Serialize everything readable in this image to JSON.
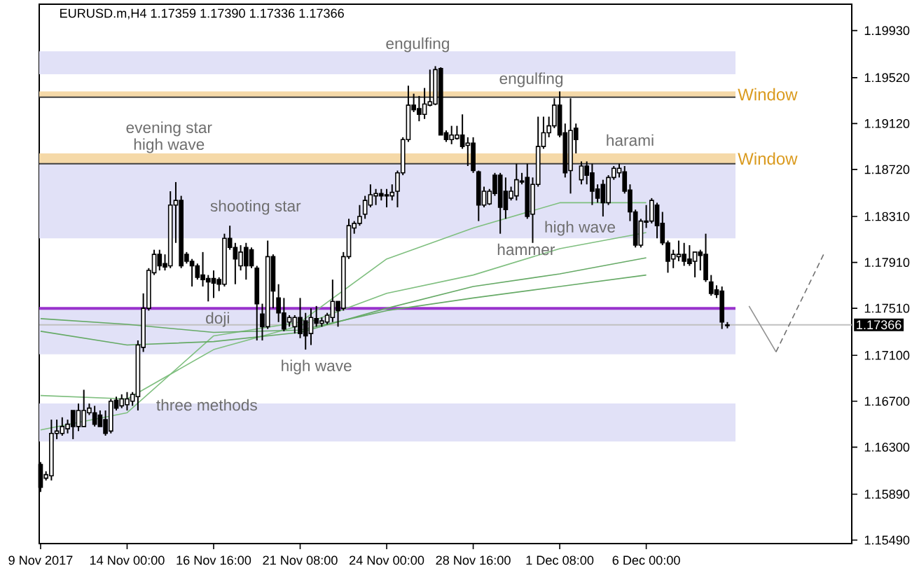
{
  "chart_data": {
    "type": "candlestick",
    "title": "EURUSD.m,H4 1.17359 1.17390 1.17336 1.17366",
    "categories": [
      "9 Nov 2017",
      null,
      null,
      null,
      null,
      null,
      null,
      null,
      null,
      null,
      null,
      null,
      null,
      null,
      null,
      null,
      "14 Nov 00:00",
      null,
      null,
      null,
      null,
      null,
      null,
      null,
      null,
      null,
      null,
      null,
      null,
      null,
      null,
      null,
      "16 Nov 16:00",
      null,
      null,
      null,
      null,
      null,
      null,
      null,
      null,
      null,
      null,
      null,
      null,
      null,
      null,
      null,
      "21 Nov 08:00",
      null,
      null,
      null,
      null,
      null,
      null,
      null,
      null,
      null,
      null,
      null,
      null,
      null,
      null,
      null,
      "24 Nov 00:00",
      null,
      null,
      null,
      null,
      null,
      null,
      null,
      null,
      null,
      null,
      null,
      null,
      null,
      null,
      null,
      "28 Nov 16:00",
      null,
      null,
      null,
      null,
      null,
      null,
      null,
      null,
      null,
      null,
      null,
      null,
      null,
      null,
      null,
      "1 Dec 08:00",
      null,
      null,
      null,
      null,
      null,
      null,
      null,
      null,
      null,
      null,
      null,
      null,
      null,
      null,
      null,
      "6 Dec 00:00",
      null,
      null,
      null,
      null,
      null,
      null,
      null,
      null,
      null,
      null,
      null,
      null,
      null,
      null,
      null,
      null,
      null,
      null,
      null,
      null,
      null,
      null,
      null,
      null,
      null,
      null,
      null,
      null,
      null,
      null,
      null,
      null,
      null,
      null,
      null,
      null,
      null,
      null
    ],
    "ohlc": [
      [
        1.1615,
        1.1617,
        1.1591,
        1.1595
      ],
      [
        1.1603,
        1.1609,
        1.1601,
        1.1606
      ],
      [
        1.1605,
        1.1654,
        1.1601,
        1.1642
      ],
      [
        1.1642,
        1.1654,
        1.1637,
        1.1644
      ],
      [
        1.1642,
        1.1656,
        1.164,
        1.1648
      ],
      [
        1.1646,
        1.1654,
        1.1642,
        1.165
      ],
      [
        1.1662,
        1.1662,
        1.1637,
        1.1648
      ],
      [
        1.1648,
        1.1668,
        1.1644,
        1.1662
      ],
      [
        1.1648,
        1.168,
        1.1648,
        1.1662
      ],
      [
        1.166,
        1.1668,
        1.1658,
        1.1664
      ],
      [
        1.166,
        1.1666,
        1.1648,
        1.165
      ],
      [
        1.1658,
        1.1662,
        1.1648,
        1.1648
      ],
      [
        1.1654,
        1.1662,
        1.164,
        1.1642
      ],
      [
        1.1644,
        1.1672,
        1.1642,
        1.167
      ],
      [
        1.1671,
        1.1674,
        1.1662,
        1.1664
      ],
      [
        1.1666,
        1.1676,
        1.1664,
        1.1672
      ],
      [
        1.1667,
        1.1678,
        1.1662,
        1.1672
      ],
      [
        1.167,
        1.1678,
        1.1666,
        1.1676
      ],
      [
        1.1674,
        1.1723,
        1.1662,
        1.1719
      ],
      [
        1.1717,
        1.1764,
        1.1713,
        1.1751
      ],
      [
        1.1751,
        1.1786,
        1.1749,
        1.1784
      ],
      [
        1.1782,
        1.1802,
        1.178,
        1.1798
      ],
      [
        1.1798,
        1.1802,
        1.1784,
        1.1788
      ],
      [
        1.179,
        1.1798,
        1.1784,
        1.1787
      ],
      [
        1.1788,
        1.1853,
        1.1786,
        1.1841
      ],
      [
        1.1841,
        1.1861,
        1.1808,
        1.1845
      ],
      [
        1.1845,
        1.1849,
        1.1786,
        1.1788
      ],
      [
        1.1798,
        1.18,
        1.179,
        1.1792
      ],
      [
        1.1792,
        1.1794,
        1.177,
        1.1788
      ],
      [
        1.1788,
        1.179,
        1.1776,
        1.1778
      ],
      [
        1.178,
        1.18,
        1.177,
        1.1776
      ],
      [
        1.1777,
        1.178,
        1.1757,
        1.1774
      ],
      [
        1.1777,
        1.1784,
        1.176,
        1.1773
      ],
      [
        1.1776,
        1.1778,
        1.1766,
        1.1772
      ],
      [
        1.1772,
        1.1816,
        1.177,
        1.1812
      ],
      [
        1.1812,
        1.1823,
        1.1802,
        1.1804
      ],
      [
        1.1804,
        1.1808,
        1.1772,
        1.1794
      ],
      [
        1.1788,
        1.1806,
        1.1784,
        1.18
      ],
      [
        1.1804,
        1.1808,
        1.1776,
        1.1788
      ],
      [
        1.1802,
        1.1804,
        1.1786,
        1.1788
      ],
      [
        1.1786,
        1.1788,
        1.1723,
        1.1755
      ],
      [
        1.1746,
        1.1755,
        1.1723,
        1.1735
      ],
      [
        1.1735,
        1.181,
        1.1733,
        1.1796
      ],
      [
        1.1796,
        1.1798,
        1.1751,
        1.1766
      ],
      [
        1.176,
        1.1772,
        1.1739,
        1.1747
      ],
      [
        1.1747,
        1.176,
        1.1731,
        1.1733
      ],
      [
        1.1739,
        1.1745,
        1.1735,
        1.1743
      ],
      [
        1.1735,
        1.1745,
        1.1729,
        1.1743
      ],
      [
        1.1743,
        1.176,
        1.1725,
        1.1729
      ],
      [
        1.174,
        1.1747,
        1.1715,
        1.1727
      ],
      [
        1.1729,
        1.1751,
        1.1719,
        1.1743
      ],
      [
        1.1742,
        1.1753,
        1.1735,
        1.1738
      ],
      [
        1.1738,
        1.1743,
        1.1735,
        1.174
      ],
      [
        1.1739,
        1.1747,
        1.1737,
        1.1745
      ],
      [
        1.1743,
        1.1776,
        1.1739,
        1.1757
      ],
      [
        1.1757,
        1.1757,
        1.1735,
        1.1749
      ],
      [
        1.1751,
        1.18,
        1.1749,
        1.1796
      ],
      [
        1.1796,
        1.1829,
        1.1794,
        1.1823
      ],
      [
        1.1821,
        1.1827,
        1.1816,
        1.1825
      ],
      [
        1.1825,
        1.1841,
        1.1823,
        1.1831
      ],
      [
        1.1833,
        1.1849,
        1.1829,
        1.1845
      ],
      [
        1.1841,
        1.1859,
        1.1839,
        1.185
      ],
      [
        1.1849,
        1.1855,
        1.1841,
        1.1851
      ],
      [
        1.1851,
        1.1855,
        1.1845,
        1.1849
      ],
      [
        1.1849,
        1.1855,
        1.1839,
        1.185
      ],
      [
        1.1849,
        1.1859,
        1.1845,
        1.1852
      ],
      [
        1.1853,
        1.1871,
        1.1839,
        1.1869
      ],
      [
        1.1869,
        1.19,
        1.1867,
        1.1898
      ],
      [
        1.1898,
        1.1945,
        1.1896,
        1.1928
      ],
      [
        1.1928,
        1.1938,
        1.1922,
        1.1924
      ],
      [
        1.1925,
        1.1936,
        1.1914,
        1.192
      ],
      [
        1.192,
        1.1943,
        1.1916,
        1.1929
      ],
      [
        1.1928,
        1.1959,
        1.1927,
        1.1931
      ],
      [
        1.1929,
        1.1962,
        1.1928,
        1.1959
      ],
      [
        1.196,
        1.1961,
        1.1902,
        1.1902
      ],
      [
        1.1904,
        1.1906,
        1.1896,
        1.1898
      ],
      [
        1.1898,
        1.191,
        1.1894,
        1.1902
      ],
      [
        1.1899,
        1.191,
        1.1898,
        1.1902
      ],
      [
        1.1902,
        1.192,
        1.189,
        1.1892
      ],
      [
        1.1893,
        1.19,
        1.1875,
        1.1895
      ],
      [
        1.1895,
        1.19,
        1.1869,
        1.1871
      ],
      [
        1.187,
        1.1871,
        1.1827,
        1.1841
      ],
      [
        1.1841,
        1.1857,
        1.1839,
        1.1853
      ],
      [
        1.1842,
        1.1855,
        1.1841,
        1.1853
      ],
      [
        1.1867,
        1.1869,
        1.1849,
        1.1851
      ],
      [
        1.1867,
        1.1869,
        1.1816,
        1.1839
      ],
      [
        1.1853,
        1.1865,
        1.1829,
        1.1837
      ],
      [
        1.1847,
        1.1857,
        1.1845,
        1.1853
      ],
      [
        1.1849,
        1.1877,
        1.1845,
        1.1863
      ],
      [
        1.1861,
        1.1869,
        1.1859,
        1.1862
      ],
      [
        1.1865,
        1.1877,
        1.1829,
        1.1831
      ],
      [
        1.1833,
        1.1865,
        1.1808,
        1.1859
      ],
      [
        1.1859,
        1.1918,
        1.1857,
        1.1892
      ],
      [
        1.1892,
        1.1918,
        1.189,
        1.1904
      ],
      [
        1.1904,
        1.1918,
        1.19,
        1.191
      ],
      [
        1.191,
        1.1934,
        1.1908,
        1.1928
      ],
      [
        1.1928,
        1.194,
        1.19,
        1.1902
      ],
      [
        1.1904,
        1.1912,
        1.1865,
        1.1869
      ],
      [
        1.1871,
        1.1934,
        1.1851,
        1.1906
      ],
      [
        1.1908,
        1.1912,
        1.1886,
        1.1898
      ],
      [
        1.1863,
        1.1879,
        1.1859,
        1.1875
      ],
      [
        1.1875,
        1.1879,
        1.1859,
        1.1867
      ],
      [
        1.1869,
        1.1877,
        1.1841,
        1.1853
      ],
      [
        1.1855,
        1.1859,
        1.1843,
        1.1847
      ],
      [
        1.1859,
        1.1863,
        1.1831,
        1.1843
      ],
      [
        1.1843,
        1.1867,
        1.1841,
        1.1865
      ],
      [
        1.1865,
        1.1875,
        1.1863,
        1.1873
      ],
      [
        1.1869,
        1.1877,
        1.1865,
        1.1873
      ],
      [
        1.187,
        1.1875,
        1.1851,
        1.1853
      ],
      [
        1.1854,
        1.1859,
        1.1827,
        1.1835
      ],
      [
        1.1835,
        1.1837,
        1.1804,
        1.1806
      ],
      [
        1.1806,
        1.1829,
        1.1804,
        1.1827
      ],
      [
        1.1827,
        1.1841,
        1.1821,
        1.1826
      ],
      [
        1.1827,
        1.1847,
        1.1825,
        1.1845
      ],
      [
        1.1841,
        1.1843,
        1.1812,
        1.1823
      ],
      [
        1.1825,
        1.1835,
        1.1806,
        1.1808
      ],
      [
        1.1808,
        1.181,
        1.1782,
        1.1792
      ],
      [
        1.1794,
        1.1802,
        1.1786,
        1.1798
      ],
      [
        1.1796,
        1.181,
        1.1792,
        1.1798
      ],
      [
        1.1798,
        1.1808,
        1.1788,
        1.1792
      ],
      [
        1.1794,
        1.1806,
        1.1788,
        1.179
      ],
      [
        1.1792,
        1.18,
        1.1778,
        1.18
      ],
      [
        1.18,
        1.1802,
        1.1784,
        1.1797
      ],
      [
        1.1798,
        1.1816,
        1.1774,
        1.1776
      ],
      [
        1.1774,
        1.178,
        1.1762,
        1.1764
      ],
      [
        1.1767,
        1.1771,
        1.176,
        1.1763
      ],
      [
        1.1766,
        1.177,
        1.1733,
        1.1739
      ],
      [
        1.17359,
        1.1739,
        1.17336,
        1.17366
      ],
      null,
      null,
      null,
      null,
      null,
      null,
      null,
      null,
      null,
      null,
      null,
      null,
      null,
      null,
      null,
      null,
      null,
      null,
      null,
      null,
      null,
      null,
      null
    ],
    "series": [
      {
        "type": "line",
        "color": "#7fbf7f",
        "x": [
          "9 Nov 2017",
          "14 Nov 00:00",
          "16 Nov 16:00",
          "21 Nov 08:00",
          "24 Nov 00:00",
          "28 Nov 16:00",
          "1 Dec 08:00",
          "6 Dec 00:00"
        ],
        "values": [
          1.1645,
          1.166,
          1.1727,
          1.1739,
          1.1794,
          1.1821,
          1.1843,
          1.1843
        ]
      },
      {
        "type": "line",
        "color": "#7fbf7f",
        "x": [
          "9 Nov 2017",
          "14 Nov 00:00",
          "16 Nov 16:00",
          "21 Nov 08:00",
          "24 Nov 00:00",
          "28 Nov 16:00",
          "1 Dec 08:00",
          "6 Dec 00:00"
        ],
        "values": [
          1.1675,
          1.1672,
          1.1715,
          1.1736,
          1.1764,
          1.178,
          1.1803,
          1.1817
        ]
      },
      {
        "type": "line",
        "color": "#66aa66",
        "x": [
          "9 Nov 2017",
          "14 Nov 00:00",
          "16 Nov 16:00",
          "21 Nov 08:00",
          "24 Nov 00:00",
          "28 Nov 16:00",
          "1 Dec 08:00",
          "6 Dec 00:00"
        ],
        "values": [
          1.1731,
          1.1719,
          1.1722,
          1.173,
          1.1751,
          1.177,
          1.1781,
          1.1795
        ]
      },
      {
        "type": "line",
        "color": "#66aa66",
        "x": [
          "9 Nov 2017",
          "14 Nov 00:00",
          "16 Nov 16:00",
          "21 Nov 08:00",
          "24 Nov 00:00",
          "28 Nov 16:00",
          "1 Dec 08:00",
          "6 Dec 00:00"
        ],
        "values": [
          1.1742,
          1.1737,
          1.173,
          1.1732,
          1.1749,
          1.176,
          1.177,
          1.178
        ]
      },
      {
        "type": "line",
        "color": "#909090",
        "line_style": "solid",
        "values": [
          null,
          null,
          null,
          null,
          null,
          null,
          null,
          null,
          null,
          null,
          null,
          null,
          null,
          null,
          null,
          null,
          null,
          null,
          null,
          null,
          null,
          null,
          null,
          null,
          null,
          null,
          null,
          null,
          null,
          null,
          null,
          null,
          null,
          null,
          null,
          null,
          null,
          null,
          null,
          null,
          null,
          null,
          null,
          null,
          null,
          null,
          null,
          null,
          null,
          null,
          null,
          null,
          null,
          null,
          null,
          null,
          null,
          null,
          null,
          null,
          null,
          null,
          null,
          null,
          null,
          null,
          null,
          null,
          null,
          null,
          null,
          null,
          null,
          null,
          null,
          null,
          null,
          null,
          null,
          null,
          null,
          null,
          null,
          null,
          null,
          null,
          null,
          null,
          null,
          null,
          null,
          null,
          null,
          null,
          null,
          null,
          null,
          null,
          null,
          null,
          null,
          null,
          null,
          null,
          null,
          null,
          null,
          null,
          null,
          null,
          null,
          null,
          null,
          null,
          null,
          null,
          null,
          null,
          null,
          null,
          null,
          null,
          null,
          null,
          null,
          null,
          null,
          null,
          null,
          null,
          null,
          1.1753,
          null,
          null,
          null,
          null,
          1.1713,
          null,
          null,
          null,
          null,
          null,
          null,
          null,
          null,
          null,
          null,
          null,
          null,
          null,
          null
        ]
      },
      {
        "type": "line",
        "color": "#707070",
        "line_style": "dashed",
        "values": [
          null,
          null,
          null,
          null,
          null,
          null,
          null,
          null,
          null,
          null,
          null,
          null,
          null,
          null,
          null,
          null,
          null,
          null,
          null,
          null,
          null,
          null,
          null,
          null,
          null,
          null,
          null,
          null,
          null,
          null,
          null,
          null,
          null,
          null,
          null,
          null,
          null,
          null,
          null,
          null,
          null,
          null,
          null,
          null,
          null,
          null,
          null,
          null,
          null,
          null,
          null,
          null,
          null,
          null,
          null,
          null,
          null,
          null,
          null,
          null,
          null,
          null,
          null,
          null,
          null,
          null,
          null,
          null,
          null,
          null,
          null,
          null,
          null,
          null,
          null,
          null,
          null,
          null,
          null,
          null,
          null,
          null,
          null,
          null,
          null,
          null,
          null,
          null,
          null,
          null,
          null,
          null,
          null,
          null,
          null,
          null,
          null,
          null,
          null,
          null,
          null,
          null,
          null,
          null,
          null,
          null,
          null,
          null,
          null,
          null,
          null,
          null,
          null,
          null,
          null,
          null,
          null,
          null,
          null,
          null,
          null,
          null,
          null,
          null,
          null,
          null,
          null,
          null,
          null,
          null,
          null,
          null,
          null,
          null,
          null,
          null,
          1.1713,
          null,
          null,
          null,
          null,
          null,
          null,
          null,
          null,
          1.18,
          null,
          null,
          null,
          null,
          null
        ]
      }
    ],
    "ylim": [
      1.1546,
      1.2016
    ],
    "yticks": [
      {
        "value": 1.1993,
        "label": "1.19930"
      },
      {
        "value": 1.1952,
        "label": "1.19520"
      },
      {
        "value": 1.1912,
        "label": "1.19120"
      },
      {
        "value": 1.1872,
        "label": "1.18720"
      },
      {
        "value": 1.1831,
        "label": "1.18310"
      },
      {
        "value": 1.1791,
        "label": "1.17910"
      },
      {
        "value": 1.1751,
        "label": "1.17510"
      },
      {
        "value": 1.171,
        "label": "1.17100"
      },
      {
        "value": 1.167,
        "label": "1.16700"
      },
      {
        "value": 1.163,
        "label": "1.16300"
      },
      {
        "value": 1.1589,
        "label": "1.15890"
      },
      {
        "value": 1.1549,
        "label": "1.15490"
      }
    ],
    "bands": [
      {
        "axis": "y",
        "from": 1.1955,
        "to": 1.1975,
        "color": "#e1e1f7"
      },
      {
        "axis": "y",
        "from": 1.1812,
        "to": 1.188,
        "color": "#e1e1f7"
      },
      {
        "axis": "y",
        "from": 1.1711,
        "to": 1.1751,
        "color": "#e1e1f7"
      },
      {
        "axis": "y",
        "from": 1.1635,
        "to": 1.1668,
        "color": "#e1e1f7"
      },
      {
        "axis": "y",
        "from": 1.1935,
        "to": 1.194,
        "color": "#f5d9a8",
        "label": "Window"
      },
      {
        "axis": "y",
        "from": 1.1877,
        "to": 1.1886,
        "color": "#f5d9a8",
        "label": "Window"
      }
    ],
    "ref_lines": [
      {
        "axis": "y",
        "value": 1.1935,
        "color": "#404040"
      },
      {
        "axis": "y",
        "value": 1.1877,
        "color": "#404040"
      },
      {
        "axis": "y",
        "value": 1.1751,
        "color": "#9933cc"
      },
      {
        "axis": "y",
        "value": 1.17366,
        "color": "#c0c0c0",
        "label": "1.17366"
      }
    ],
    "annotations": [
      "engulfing",
      "evening star",
      "high wave",
      "shooting star",
      "doji",
      "high wave",
      "three methods",
      "engulfing",
      "hammer",
      "high wave",
      "harami"
    ]
  }
}
